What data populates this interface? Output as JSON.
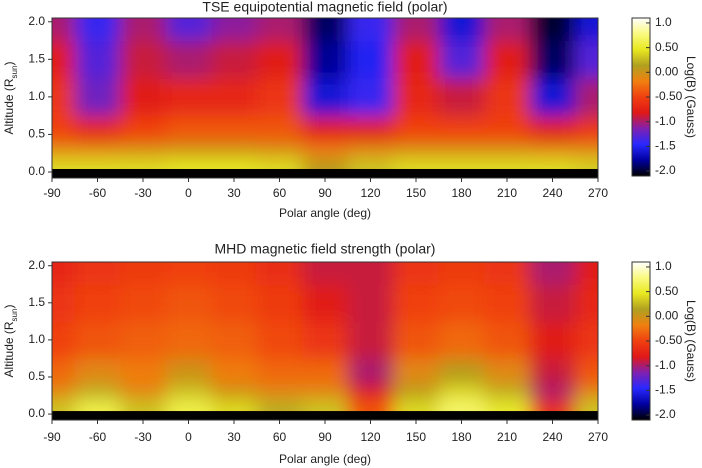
{
  "chart_data": [
    {
      "type": "heatmap",
      "title": "TSE equipotential magnetic field (polar)",
      "x_label": "Polar angle (deg)",
      "y_label": [
        "Altitude (R",
        "sun",
        ")"
      ],
      "x": [
        -90,
        -60,
        -30,
        0,
        30,
        60,
        90,
        120,
        150,
        180,
        210,
        240,
        270
      ],
      "y": [
        0.1,
        0.3,
        0.5,
        1.0,
        1.5,
        2.0
      ],
      "values": [
        [
          0.4,
          0.4,
          0.4,
          0.45,
          0.45,
          0.4,
          0.1,
          0.3,
          0.4,
          0.4,
          0.4,
          0.4,
          0.35
        ],
        [
          -0.1,
          -0.1,
          -0.05,
          0,
          0,
          -0.05,
          -0.2,
          -0.1,
          -0.05,
          -0.05,
          -0.05,
          -0.1,
          -0.1
        ],
        [
          -0.5,
          -0.7,
          -0.5,
          -0.4,
          -0.4,
          -0.4,
          -0.8,
          -0.8,
          -0.5,
          -0.5,
          -0.5,
          -0.8,
          -0.6
        ],
        [
          -0.6,
          -1.2,
          -0.8,
          -0.7,
          -0.7,
          -0.6,
          -1.6,
          -1.4,
          -0.7,
          -0.9,
          -0.6,
          -1.6,
          -1.0
        ],
        [
          -0.8,
          -1.3,
          -0.9,
          -1.0,
          -0.9,
          -0.8,
          -1.8,
          -1.5,
          -0.8,
          -1.3,
          -0.8,
          -1.9,
          -1.3
        ],
        [
          -1.0,
          -1.4,
          -1.0,
          -1.3,
          -1.1,
          -1.0,
          -1.9,
          -1.4,
          -1.0,
          -1.6,
          -1.0,
          -2.0,
          -1.6
        ]
      ],
      "xlim": [
        -90,
        270
      ],
      "ylim": [
        -0.08,
        2.05
      ],
      "xticks": [
        -90,
        -60,
        -30,
        0,
        30,
        60,
        90,
        120,
        150,
        180,
        210,
        240,
        270
      ],
      "yticks": [
        {
          "value": 0,
          "label": "0.0"
        },
        0.5,
        {
          "value": 1,
          "label": "1.0"
        },
        1.5,
        {
          "value": 2,
          "label": "2.0"
        }
      ],
      "clim": [
        -2.1,
        1.1
      ],
      "colorbar_ticks": [
        {
          "value": 1,
          "label": "1.0"
        },
        {
          "value": 0.5,
          "label": "0.50"
        },
        {
          "value": 0,
          "label": "0.00"
        },
        {
          "value": -0.5,
          "label": "-0.50"
        },
        {
          "value": -1,
          "label": "-1.0"
        },
        -1.5,
        {
          "value": -2,
          "label": "-2.0"
        }
      ],
      "colorbar_label": "Log(B) (Gauss)",
      "colors": [
        "#000000",
        "#0000a0",
        "#2828ff",
        "#8020b0",
        "#e01818",
        "#f04010",
        "#f08010",
        "#b0a020",
        "#e8e820",
        "#fafa80",
        "#ffffff"
      ]
    },
    {
      "type": "heatmap",
      "title": "MHD magnetic field strength (polar)",
      "x_label": "Polar angle (deg)",
      "y_label": [
        "Altitude (R",
        "sun",
        ")"
      ],
      "x": [
        -90,
        -60,
        -30,
        0,
        30,
        60,
        90,
        120,
        150,
        180,
        210,
        240,
        270
      ],
      "y": [
        0.1,
        0.3,
        0.5,
        1.0,
        1.5,
        2.0
      ],
      "values": [
        [
          0.3,
          0.6,
          0.3,
          0.6,
          0.4,
          0.2,
          0.3,
          -0.4,
          0.4,
          0.7,
          0.5,
          -0.6,
          0.3
        ],
        [
          -0.1,
          0.2,
          -0.1,
          0.3,
          0.0,
          -0.1,
          -0.1,
          -0.8,
          0.1,
          0.4,
          0.2,
          -1.0,
          -0.1
        ],
        [
          -0.3,
          -0.1,
          -0.2,
          0.0,
          -0.2,
          -0.3,
          -0.3,
          -1.0,
          -0.1,
          0.1,
          -0.1,
          -0.9,
          -0.4
        ],
        [
          -0.5,
          -0.4,
          -0.35,
          -0.3,
          -0.35,
          -0.45,
          -0.6,
          -0.9,
          -0.4,
          -0.3,
          -0.4,
          -0.8,
          -0.6
        ],
        [
          -0.6,
          -0.5,
          -0.45,
          -0.4,
          -0.45,
          -0.55,
          -0.8,
          -0.9,
          -0.5,
          -0.45,
          -0.5,
          -0.9,
          -0.7
        ],
        [
          -0.7,
          -0.6,
          -0.55,
          -0.5,
          -0.55,
          -0.65,
          -0.9,
          -0.9,
          -0.6,
          -0.55,
          -0.6,
          -1.0,
          -0.8
        ]
      ],
      "xlim": [
        -90,
        270
      ],
      "ylim": [
        -0.08,
        2.05
      ],
      "xticks": [
        -90,
        -60,
        -30,
        0,
        30,
        60,
        90,
        120,
        150,
        180,
        210,
        240,
        270
      ],
      "yticks": [
        {
          "value": 0,
          "label": "0.0"
        },
        0.5,
        {
          "value": 1,
          "label": "1.0"
        },
        1.5,
        {
          "value": 2,
          "label": "2.0"
        }
      ],
      "clim": [
        -2.1,
        1.1
      ],
      "colorbar_ticks": [
        {
          "value": 1,
          "label": "1.0"
        },
        {
          "value": 0.5,
          "label": "0.50"
        },
        {
          "value": 0,
          "label": "0.00"
        },
        {
          "value": -0.5,
          "label": "-0.50"
        },
        {
          "value": -1,
          "label": "-1.0"
        },
        -1.5,
        {
          "value": -2,
          "label": "-2.0"
        }
      ],
      "colorbar_label": "Log(B) (Gauss)",
      "colors": [
        "#000000",
        "#0000a0",
        "#2828ff",
        "#8020b0",
        "#e01818",
        "#f04010",
        "#f08010",
        "#b0a020",
        "#e8e820",
        "#fafa80",
        "#ffffff"
      ]
    }
  ]
}
